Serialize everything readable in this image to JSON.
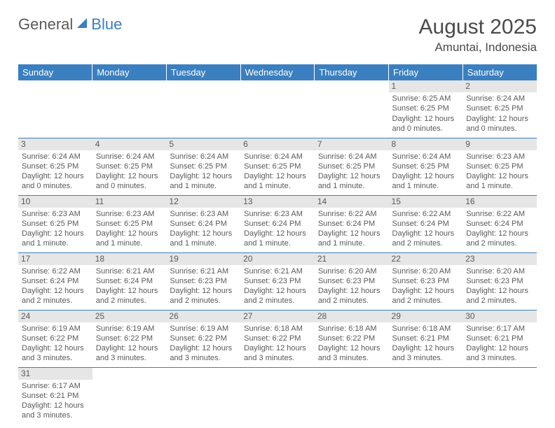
{
  "logo": {
    "text1": "General",
    "text2": "Blue"
  },
  "title": "August 2025",
  "location": "Amuntai, Indonesia",
  "colors": {
    "header_bg": "#3a7fbf",
    "header_text": "#ffffff",
    "daynum_bg": "#e6e6e6",
    "border": "#3a7fbf",
    "body_text": "#5a5a5a"
  },
  "weekdays": [
    "Sunday",
    "Monday",
    "Tuesday",
    "Wednesday",
    "Thursday",
    "Friday",
    "Saturday"
  ],
  "weeks": [
    [
      null,
      null,
      null,
      null,
      null,
      {
        "n": "1",
        "sr": "Sunrise: 6:25 AM",
        "ss": "Sunset: 6:25 PM",
        "d1": "Daylight: 12 hours",
        "d2": "and 0 minutes."
      },
      {
        "n": "2",
        "sr": "Sunrise: 6:24 AM",
        "ss": "Sunset: 6:25 PM",
        "d1": "Daylight: 12 hours",
        "d2": "and 0 minutes."
      }
    ],
    [
      {
        "n": "3",
        "sr": "Sunrise: 6:24 AM",
        "ss": "Sunset: 6:25 PM",
        "d1": "Daylight: 12 hours",
        "d2": "and 0 minutes."
      },
      {
        "n": "4",
        "sr": "Sunrise: 6:24 AM",
        "ss": "Sunset: 6:25 PM",
        "d1": "Daylight: 12 hours",
        "d2": "and 0 minutes."
      },
      {
        "n": "5",
        "sr": "Sunrise: 6:24 AM",
        "ss": "Sunset: 6:25 PM",
        "d1": "Daylight: 12 hours",
        "d2": "and 1 minute."
      },
      {
        "n": "6",
        "sr": "Sunrise: 6:24 AM",
        "ss": "Sunset: 6:25 PM",
        "d1": "Daylight: 12 hours",
        "d2": "and 1 minute."
      },
      {
        "n": "7",
        "sr": "Sunrise: 6:24 AM",
        "ss": "Sunset: 6:25 PM",
        "d1": "Daylight: 12 hours",
        "d2": "and 1 minute."
      },
      {
        "n": "8",
        "sr": "Sunrise: 6:24 AM",
        "ss": "Sunset: 6:25 PM",
        "d1": "Daylight: 12 hours",
        "d2": "and 1 minute."
      },
      {
        "n": "9",
        "sr": "Sunrise: 6:23 AM",
        "ss": "Sunset: 6:25 PM",
        "d1": "Daylight: 12 hours",
        "d2": "and 1 minute."
      }
    ],
    [
      {
        "n": "10",
        "sr": "Sunrise: 6:23 AM",
        "ss": "Sunset: 6:25 PM",
        "d1": "Daylight: 12 hours",
        "d2": "and 1 minute."
      },
      {
        "n": "11",
        "sr": "Sunrise: 6:23 AM",
        "ss": "Sunset: 6:25 PM",
        "d1": "Daylight: 12 hours",
        "d2": "and 1 minute."
      },
      {
        "n": "12",
        "sr": "Sunrise: 6:23 AM",
        "ss": "Sunset: 6:24 PM",
        "d1": "Daylight: 12 hours",
        "d2": "and 1 minute."
      },
      {
        "n": "13",
        "sr": "Sunrise: 6:23 AM",
        "ss": "Sunset: 6:24 PM",
        "d1": "Daylight: 12 hours",
        "d2": "and 1 minute."
      },
      {
        "n": "14",
        "sr": "Sunrise: 6:22 AM",
        "ss": "Sunset: 6:24 PM",
        "d1": "Daylight: 12 hours",
        "d2": "and 1 minute."
      },
      {
        "n": "15",
        "sr": "Sunrise: 6:22 AM",
        "ss": "Sunset: 6:24 PM",
        "d1": "Daylight: 12 hours",
        "d2": "and 2 minutes."
      },
      {
        "n": "16",
        "sr": "Sunrise: 6:22 AM",
        "ss": "Sunset: 6:24 PM",
        "d1": "Daylight: 12 hours",
        "d2": "and 2 minutes."
      }
    ],
    [
      {
        "n": "17",
        "sr": "Sunrise: 6:22 AM",
        "ss": "Sunset: 6:24 PM",
        "d1": "Daylight: 12 hours",
        "d2": "and 2 minutes."
      },
      {
        "n": "18",
        "sr": "Sunrise: 6:21 AM",
        "ss": "Sunset: 6:24 PM",
        "d1": "Daylight: 12 hours",
        "d2": "and 2 minutes."
      },
      {
        "n": "19",
        "sr": "Sunrise: 6:21 AM",
        "ss": "Sunset: 6:23 PM",
        "d1": "Daylight: 12 hours",
        "d2": "and 2 minutes."
      },
      {
        "n": "20",
        "sr": "Sunrise: 6:21 AM",
        "ss": "Sunset: 6:23 PM",
        "d1": "Daylight: 12 hours",
        "d2": "and 2 minutes."
      },
      {
        "n": "21",
        "sr": "Sunrise: 6:20 AM",
        "ss": "Sunset: 6:23 PM",
        "d1": "Daylight: 12 hours",
        "d2": "and 2 minutes."
      },
      {
        "n": "22",
        "sr": "Sunrise: 6:20 AM",
        "ss": "Sunset: 6:23 PM",
        "d1": "Daylight: 12 hours",
        "d2": "and 2 minutes."
      },
      {
        "n": "23",
        "sr": "Sunrise: 6:20 AM",
        "ss": "Sunset: 6:23 PM",
        "d1": "Daylight: 12 hours",
        "d2": "and 2 minutes."
      }
    ],
    [
      {
        "n": "24",
        "sr": "Sunrise: 6:19 AM",
        "ss": "Sunset: 6:22 PM",
        "d1": "Daylight: 12 hours",
        "d2": "and 3 minutes."
      },
      {
        "n": "25",
        "sr": "Sunrise: 6:19 AM",
        "ss": "Sunset: 6:22 PM",
        "d1": "Daylight: 12 hours",
        "d2": "and 3 minutes."
      },
      {
        "n": "26",
        "sr": "Sunrise: 6:19 AM",
        "ss": "Sunset: 6:22 PM",
        "d1": "Daylight: 12 hours",
        "d2": "and 3 minutes."
      },
      {
        "n": "27",
        "sr": "Sunrise: 6:18 AM",
        "ss": "Sunset: 6:22 PM",
        "d1": "Daylight: 12 hours",
        "d2": "and 3 minutes."
      },
      {
        "n": "28",
        "sr": "Sunrise: 6:18 AM",
        "ss": "Sunset: 6:22 PM",
        "d1": "Daylight: 12 hours",
        "d2": "and 3 minutes."
      },
      {
        "n": "29",
        "sr": "Sunrise: 6:18 AM",
        "ss": "Sunset: 6:21 PM",
        "d1": "Daylight: 12 hours",
        "d2": "and 3 minutes."
      },
      {
        "n": "30",
        "sr": "Sunrise: 6:17 AM",
        "ss": "Sunset: 6:21 PM",
        "d1": "Daylight: 12 hours",
        "d2": "and 3 minutes."
      }
    ],
    [
      {
        "n": "31",
        "sr": "Sunrise: 6:17 AM",
        "ss": "Sunset: 6:21 PM",
        "d1": "Daylight: 12 hours",
        "d2": "and 3 minutes."
      },
      null,
      null,
      null,
      null,
      null,
      null
    ]
  ]
}
